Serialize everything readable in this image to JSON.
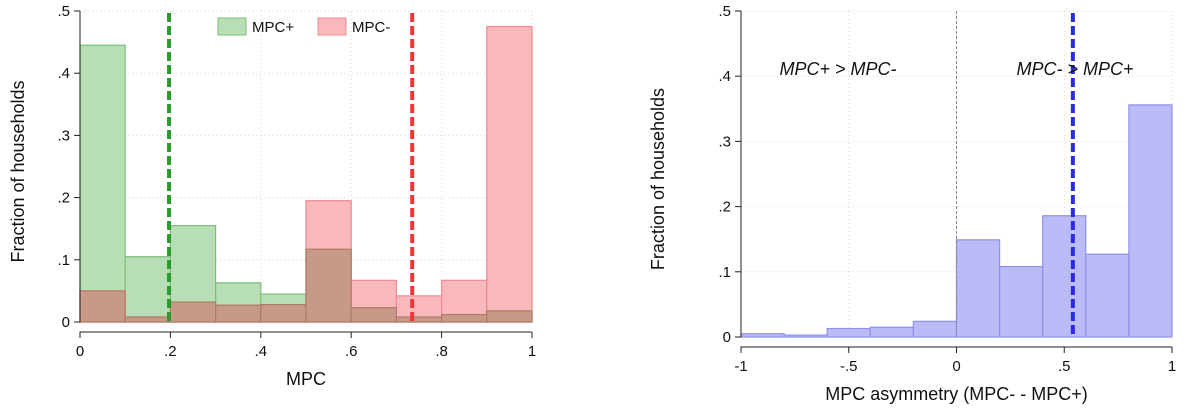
{
  "chart_data": [
    {
      "type": "bar",
      "title": "",
      "xlabel": "MPC",
      "ylabel": "Fraction of households",
      "xlim": [
        0,
        1
      ],
      "ylim": [
        0,
        0.5
      ],
      "bin_edges": [
        0,
        0.1,
        0.2,
        0.3,
        0.4,
        0.5,
        0.6,
        0.7,
        0.8,
        0.9,
        1.0
      ],
      "x_ticks": [
        0,
        0.2,
        0.4,
        0.6,
        0.8,
        1
      ],
      "x_tick_labels": [
        "0",
        ".2",
        ".4",
        ".6",
        ".8",
        "1"
      ],
      "y_ticks": [
        0,
        0.1,
        0.2,
        0.3,
        0.4,
        0.5
      ],
      "y_tick_labels": [
        "0",
        ".1",
        ".2",
        ".3",
        ".4",
        ".5"
      ],
      "grid": true,
      "legend_position": "top-center",
      "series": [
        {
          "name": "MPC+",
          "fill": "#b8deb5",
          "stroke": "#7dbf7a",
          "values": [
            0.445,
            0.105,
            0.155,
            0.063,
            0.045,
            0.117,
            0.023,
            0.008,
            0.012,
            0.018
          ]
        },
        {
          "name": "MPC-",
          "fill": "#f9b9bc",
          "stroke": "#ef8a8f",
          "values": [
            0.05,
            0.008,
            0.032,
            0.027,
            0.028,
            0.195,
            0.067,
            0.042,
            0.067,
            0.475
          ]
        }
      ],
      "overlap_fill": "#c79a88",
      "vlines": [
        {
          "x": 0.197,
          "color": "#2a9a2a"
        },
        {
          "x": 0.735,
          "color": "#ef3535"
        }
      ]
    },
    {
      "type": "bar",
      "title": "",
      "xlabel": "MPC asymmetry (MPC- - MPC+)",
      "ylabel": "Fraction of households",
      "xlim": [
        -1,
        1
      ],
      "ylim": [
        0,
        0.5
      ],
      "bin_edges": [
        -1,
        -0.8,
        -0.6,
        -0.4,
        -0.2,
        0,
        0.2,
        0.4,
        0.6,
        0.8,
        1.0
      ],
      "x_ticks": [
        -1,
        -0.5,
        0,
        0.5,
        1
      ],
      "x_tick_labels": [
        "-1",
        "-.5",
        "0",
        ".5",
        "1"
      ],
      "y_ticks": [
        0,
        0.1,
        0.2,
        0.3,
        0.4,
        0.5
      ],
      "y_tick_labels": [
        "0",
        ".1",
        ".2",
        ".3",
        ".4",
        ".5"
      ],
      "grid": true,
      "series": [
        {
          "fill": "#babbf7",
          "stroke": "#8f90ea",
          "values": [
            0.005,
            0.003,
            0.013,
            0.015,
            0.024,
            0.149,
            0.108,
            0.186,
            0.127,
            0.356
          ]
        }
      ],
      "vlines": [
        {
          "x": 0,
          "color": "#888888",
          "style": "thin-dashed"
        },
        {
          "x": 0.54,
          "color": "#2b2be6"
        }
      ],
      "annotations": [
        {
          "text": "MPC+ > MPC-",
          "x": -0.55,
          "y": 0.4
        },
        {
          "text": "MPC- > MPC+",
          "x": 0.55,
          "y": 0.4
        }
      ]
    }
  ]
}
